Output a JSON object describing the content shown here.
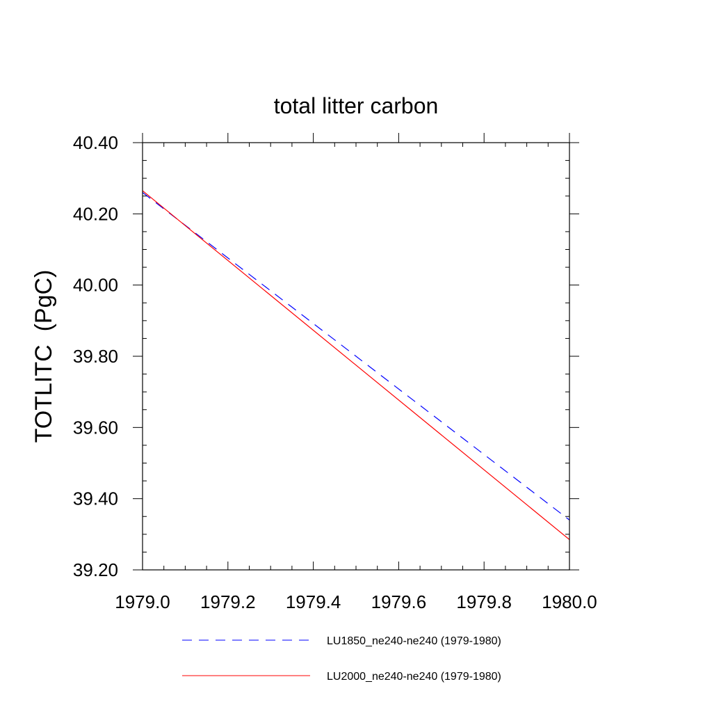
{
  "chart_data": {
    "type": "line",
    "title": "total litter carbon",
    "xlabel": "",
    "ylabel": "TOTLITC  (PgC)",
    "xlim": [
      1979.0,
      1980.0
    ],
    "ylim": [
      39.2,
      40.4
    ],
    "x_ticks": [
      "1979.0",
      "1979.2",
      "1979.4",
      "1979.6",
      "1979.8",
      "1980.0"
    ],
    "y_ticks": [
      "39.20",
      "39.40",
      "39.60",
      "39.80",
      "40.00",
      "40.20",
      "40.40"
    ],
    "grid": false,
    "legend_position": "bottom",
    "series": [
      {
        "name": "LU1850_ne240-ne240 (1979-1980)",
        "color": "#0000ff",
        "line_style": "dashed",
        "x": [
          1979.0,
          1980.0
        ],
        "y": [
          40.26,
          39.34
        ]
      },
      {
        "name": "LU2000_ne240-ne240 (1979-1980)",
        "color": "#ff0000",
        "line_style": "solid",
        "x": [
          1979.0,
          1980.0
        ],
        "y": [
          40.265,
          39.285
        ]
      }
    ]
  }
}
